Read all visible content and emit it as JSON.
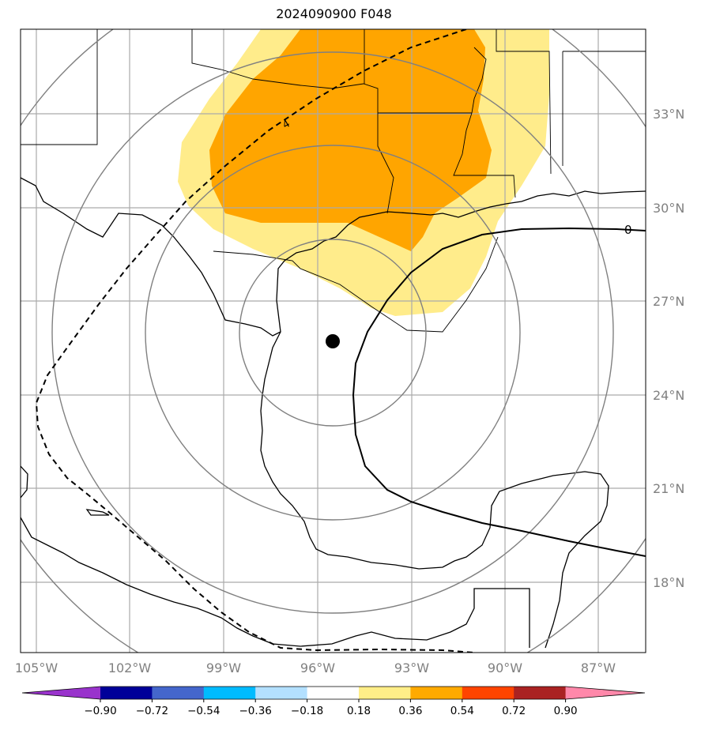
{
  "title": "2024090900 F048",
  "lat_labels": [
    {
      "text": "33°N",
      "value": 33
    },
    {
      "text": "30°N",
      "value": 30
    },
    {
      "text": "27°N",
      "value": 27
    },
    {
      "text": "24°N",
      "value": 24
    },
    {
      "text": "21°N",
      "value": 21
    },
    {
      "text": "18°N",
      "value": 18
    }
  ],
  "lon_labels": [
    {
      "text": "105°W",
      "value": -105
    },
    {
      "text": "102°W",
      "value": -102
    },
    {
      "text": "99°W",
      "value": -99
    },
    {
      "text": "96°W",
      "value": -96
    },
    {
      "text": "93°W",
      "value": -93
    },
    {
      "text": "90°W",
      "value": -90
    },
    {
      "text": "87°W",
      "value": -87
    }
  ],
  "contour_labels": [
    "4",
    "0"
  ],
  "storm_center": {
    "lat": 25.7,
    "lon": -95.6
  },
  "colorbar": {
    "ticks": [
      "−0.90",
      "−0.72",
      "−0.54",
      "−0.36",
      "−0.18",
      "0.18",
      "0.36",
      "0.54",
      "0.72",
      "0.90"
    ],
    "colors": [
      "#9933cc",
      "#000099",
      "#4466cc",
      "#00bbff",
      "#b3e0ff",
      "#ffffff",
      "#ffee88",
      "#ffaa00",
      "#ff4400",
      "#aa2222",
      "#ff88aa"
    ]
  },
  "colors": {
    "fill_light": "#ffec8b",
    "fill_dark": "#ffa500",
    "grid": "#aaaaaa",
    "range_rings": "#808080"
  }
}
